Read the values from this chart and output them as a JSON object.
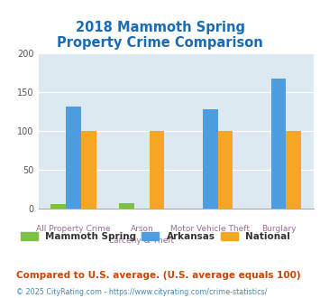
{
  "title": "2018 Mammoth Spring\nProperty Crime Comparison",
  "categories_line1": [
    "All Property Crime",
    "Arson",
    "Motor Vehicle Theft",
    "Burglary"
  ],
  "categories_line2": [
    "",
    "Larceny & Theft",
    "",
    ""
  ],
  "series": {
    "Mammoth Spring": [
      6,
      7,
      0,
      0
    ],
    "Arkansas": [
      132,
      0,
      128,
      168
    ],
    "National": [
      100,
      100,
      100,
      100
    ]
  },
  "colors": {
    "Mammoth Spring": "#7bc142",
    "Arkansas": "#4d9de0",
    "National": "#f5a623"
  },
  "ylim": [
    0,
    200
  ],
  "yticks": [
    0,
    50,
    100,
    150,
    200
  ],
  "background_color": "#dce9f0",
  "plot_bg": "#dce9f0",
  "title_color": "#1a6bb5",
  "xlabel_color1": "#9b6b9b",
  "xlabel_color2": "#9b6b9b",
  "footnote1": "Compared to U.S. average. (U.S. average equals 100)",
  "footnote2": "© 2025 CityRating.com - https://www.cityrating.com/crime-statistics/",
  "footnote1_color": "#cc4400",
  "footnote2_color": "#4488bb",
  "bar_width": 0.22
}
